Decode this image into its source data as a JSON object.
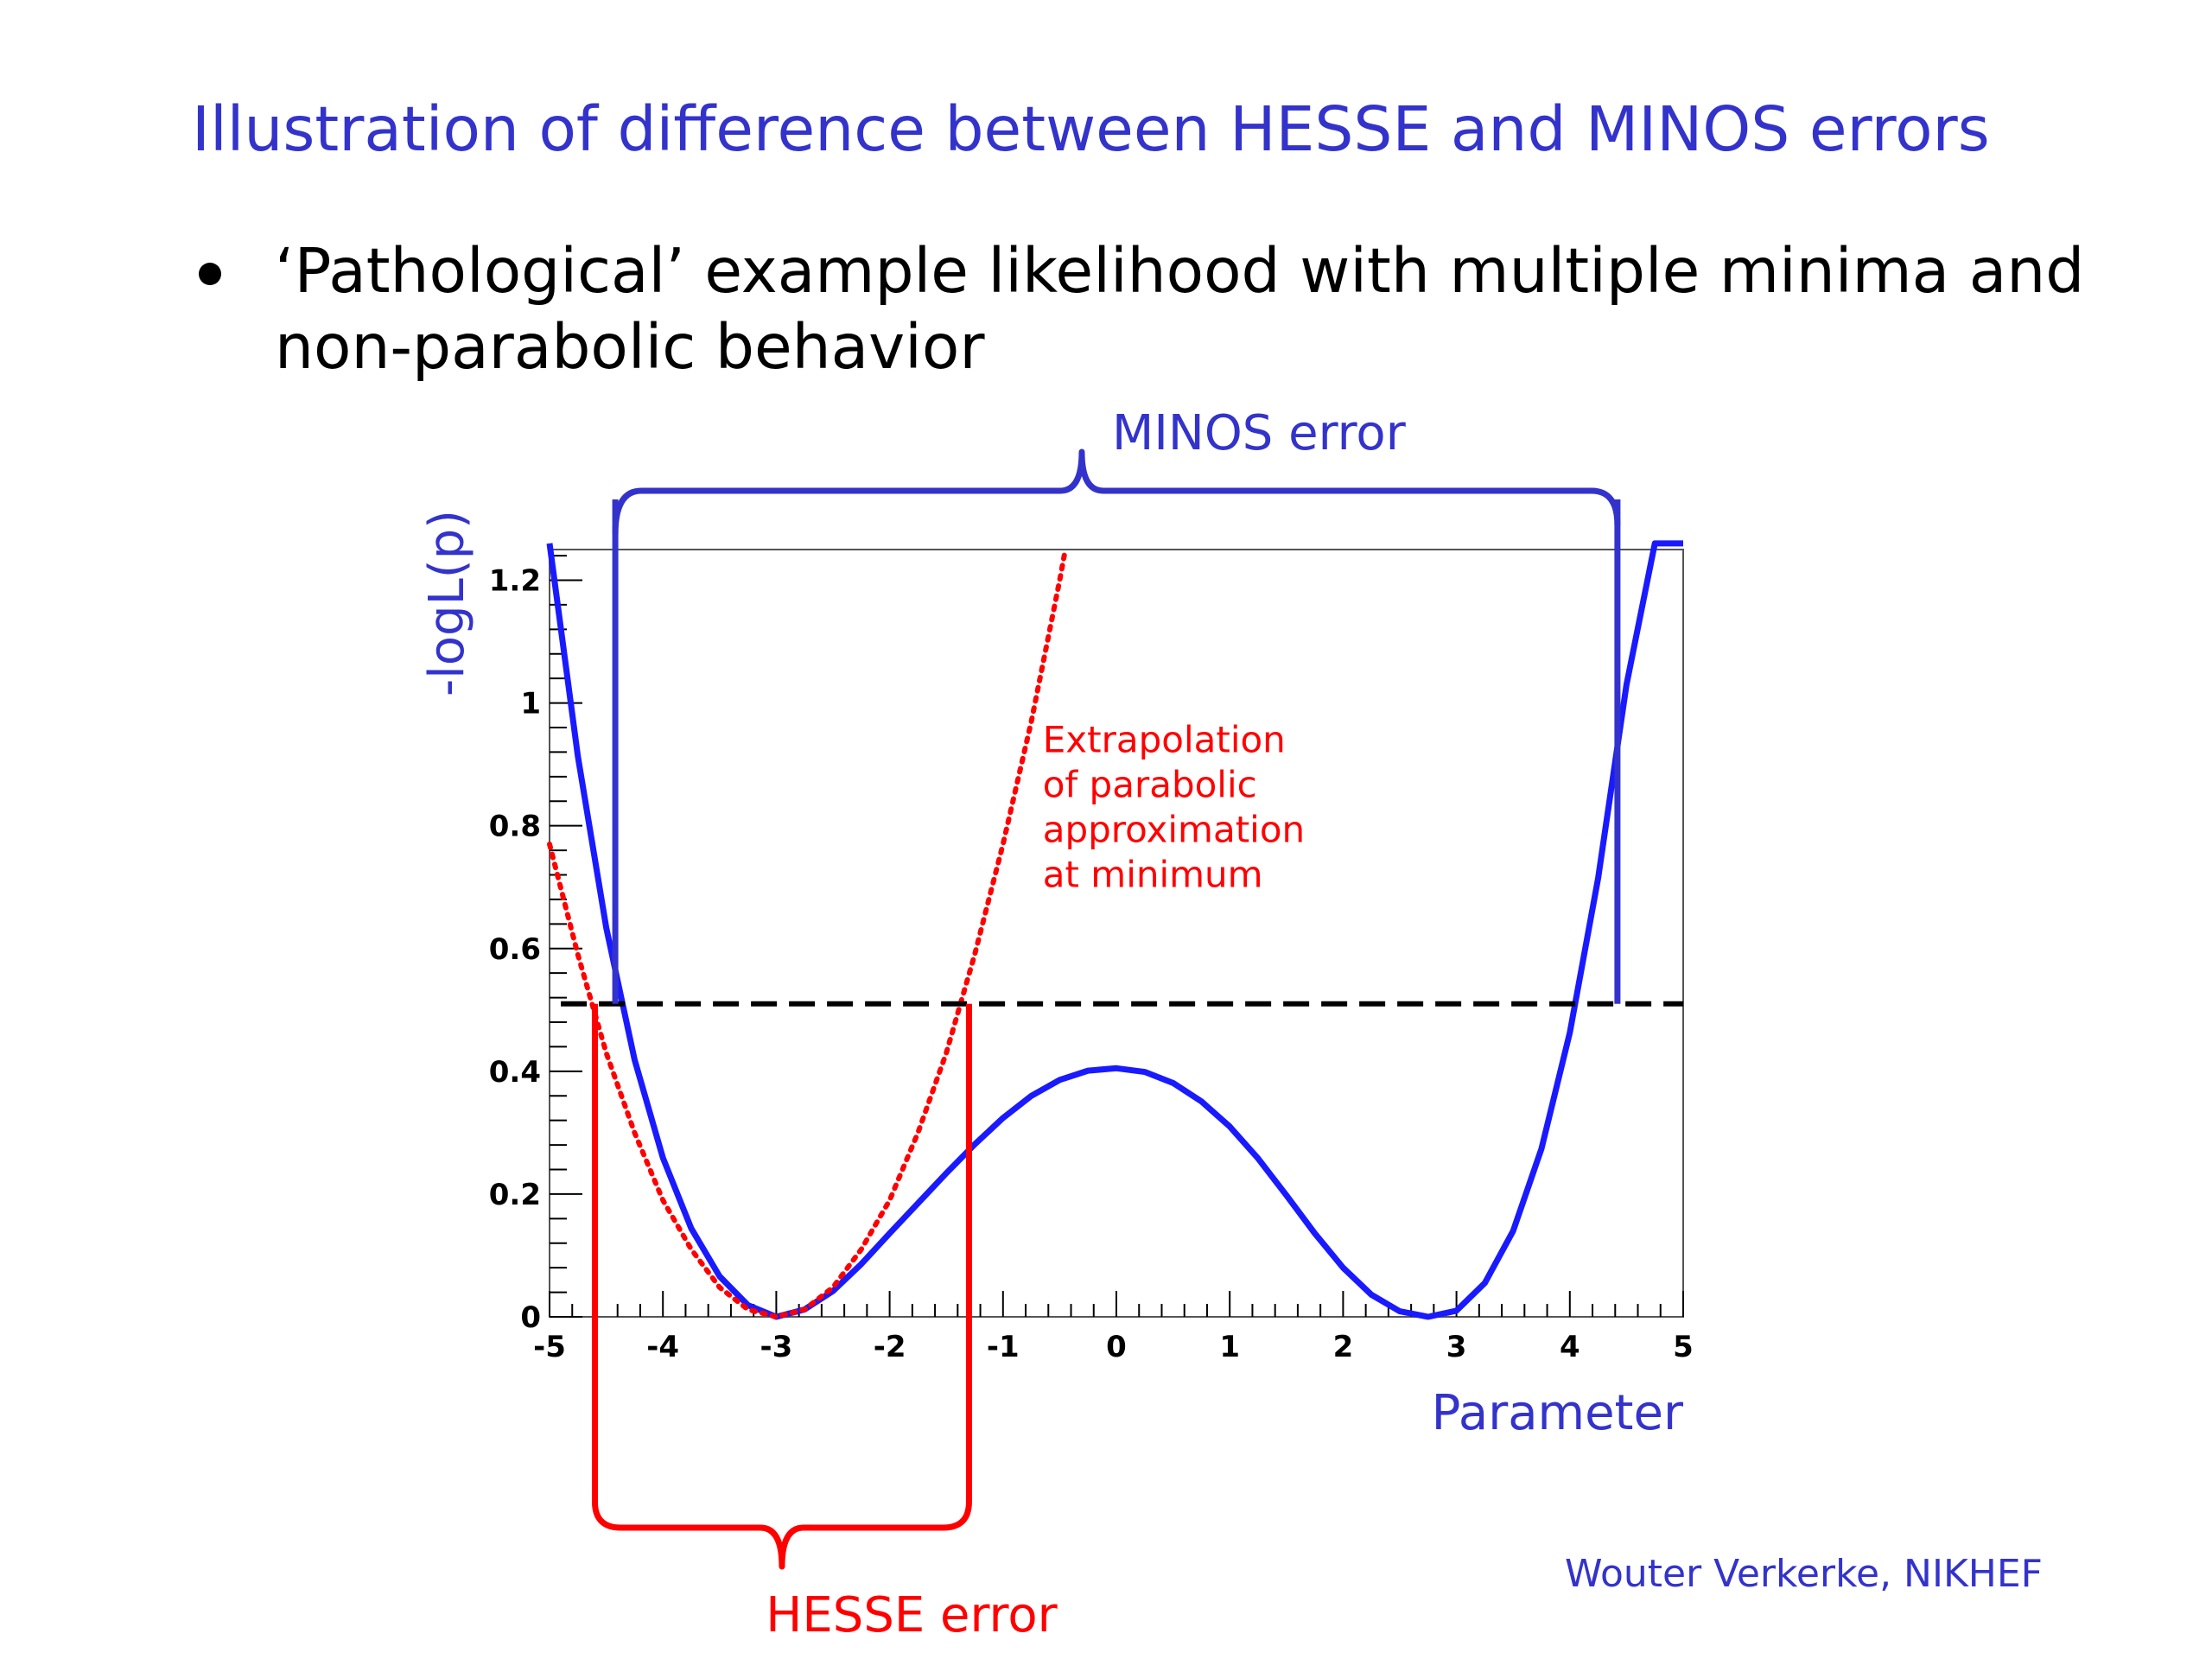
{
  "slide": {
    "title": "Illustration of difference between HESSE and MINOS errors",
    "bullet": "‘Pathological’ example likelihood with multiple minima and non-parabolic behavior",
    "credit": "Wouter Verkerke, NIKHEF"
  },
  "colors": {
    "title": "#3333cc",
    "curve": "#1a1aff",
    "minos": "#3333cc",
    "parabola": "#ff0000",
    "hesse": "#ff0000",
    "threshold": "#000000"
  },
  "chart_data": {
    "type": "line",
    "title": "",
    "xlabel": "Parameter",
    "ylabel": "-logL(p)",
    "xlim": [
      -5,
      5
    ],
    "ylim": [
      0,
      1.25
    ],
    "xticks": [
      -5,
      -4,
      -3,
      -2,
      -1,
      0,
      1,
      2,
      3,
      4,
      5
    ],
    "yticks": [
      0,
      0.2,
      0.4,
      0.6,
      0.8,
      1,
      1.2
    ],
    "xtick_labels": [
      "-5",
      "-4",
      "-3",
      "-2",
      "-1",
      "0",
      "1",
      "2",
      "3",
      "4",
      "5"
    ],
    "ytick_labels": [
      "0",
      "0.2",
      "0.4",
      "0.6",
      "0.8",
      "1",
      "1.2"
    ],
    "grid": false,
    "series": [
      {
        "style": "solid",
        "color": "#1a1aff",
        "x": [
          -5,
          -4.75,
          -4.5,
          -4.25,
          -4,
          -3.75,
          -3.5,
          -3.25,
          -3,
          -2.75,
          -2.5,
          -2.25,
          -2,
          -1.75,
          -1.5,
          -1.25,
          -1,
          -0.75,
          -0.5,
          -0.25,
          0,
          0.25,
          0.5,
          0.75,
          1,
          1.25,
          1.5,
          1.75,
          2,
          2.25,
          2.5,
          2.75,
          3,
          3.25,
          3.5,
          3.75,
          4,
          4.25,
          4.5,
          4.75,
          5
        ],
        "y": [
          1.26,
          0.913,
          0.634,
          0.419,
          0.259,
          0.144,
          0.066,
          0.019,
          0.0,
          0.012,
          0.042,
          0.086,
          0.136,
          0.185,
          0.234,
          0.281,
          0.324,
          0.36,
          0.386,
          0.401,
          0.405,
          0.399,
          0.381,
          0.351,
          0.31,
          0.258,
          0.198,
          0.136,
          0.08,
          0.036,
          0.009,
          0.0,
          0.01,
          0.055,
          0.14,
          0.274,
          0.463,
          0.715,
          1.03,
          1.26,
          1.26
        ]
      },
      {
        "style": "dotted",
        "color": "#ff0000",
        "x": [
          -5,
          -4.75,
          -4.5,
          -4.25,
          -4,
          -3.75,
          -3.5,
          -3.25,
          -3,
          -2.75,
          -2.5,
          -2.25,
          -2,
          -1.75,
          -1.5,
          -1.25,
          -1,
          -0.75,
          -0.5,
          -0.45
        ],
        "y": [
          0.77,
          0.59,
          0.43,
          0.3,
          0.19,
          0.11,
          0.048,
          0.012,
          0.0,
          0.012,
          0.048,
          0.11,
          0.19,
          0.3,
          0.43,
          0.59,
          0.77,
          0.97,
          1.2,
          1.25
        ]
      },
      {
        "style": "dashed",
        "color": "#000000",
        "x": [
          -4.9,
          5
        ],
        "y": [
          0.51,
          0.51
        ]
      }
    ],
    "annotations": [
      {
        "text": "Extrapolation\nof parabolic\napproximation\nat minimum",
        "x": -0.65,
        "y": 0.92,
        "color": "#ff0000"
      },
      {
        "text": "MINOS error",
        "type": "bracket",
        "position": "above",
        "x_from": -4.42,
        "x_to": 4.42,
        "color": "#3333cc"
      },
      {
        "text": "HESSE error",
        "type": "bracket",
        "position": "below",
        "x_from": -4.6,
        "x_to": -1.3,
        "color": "#ff0000"
      }
    ]
  }
}
